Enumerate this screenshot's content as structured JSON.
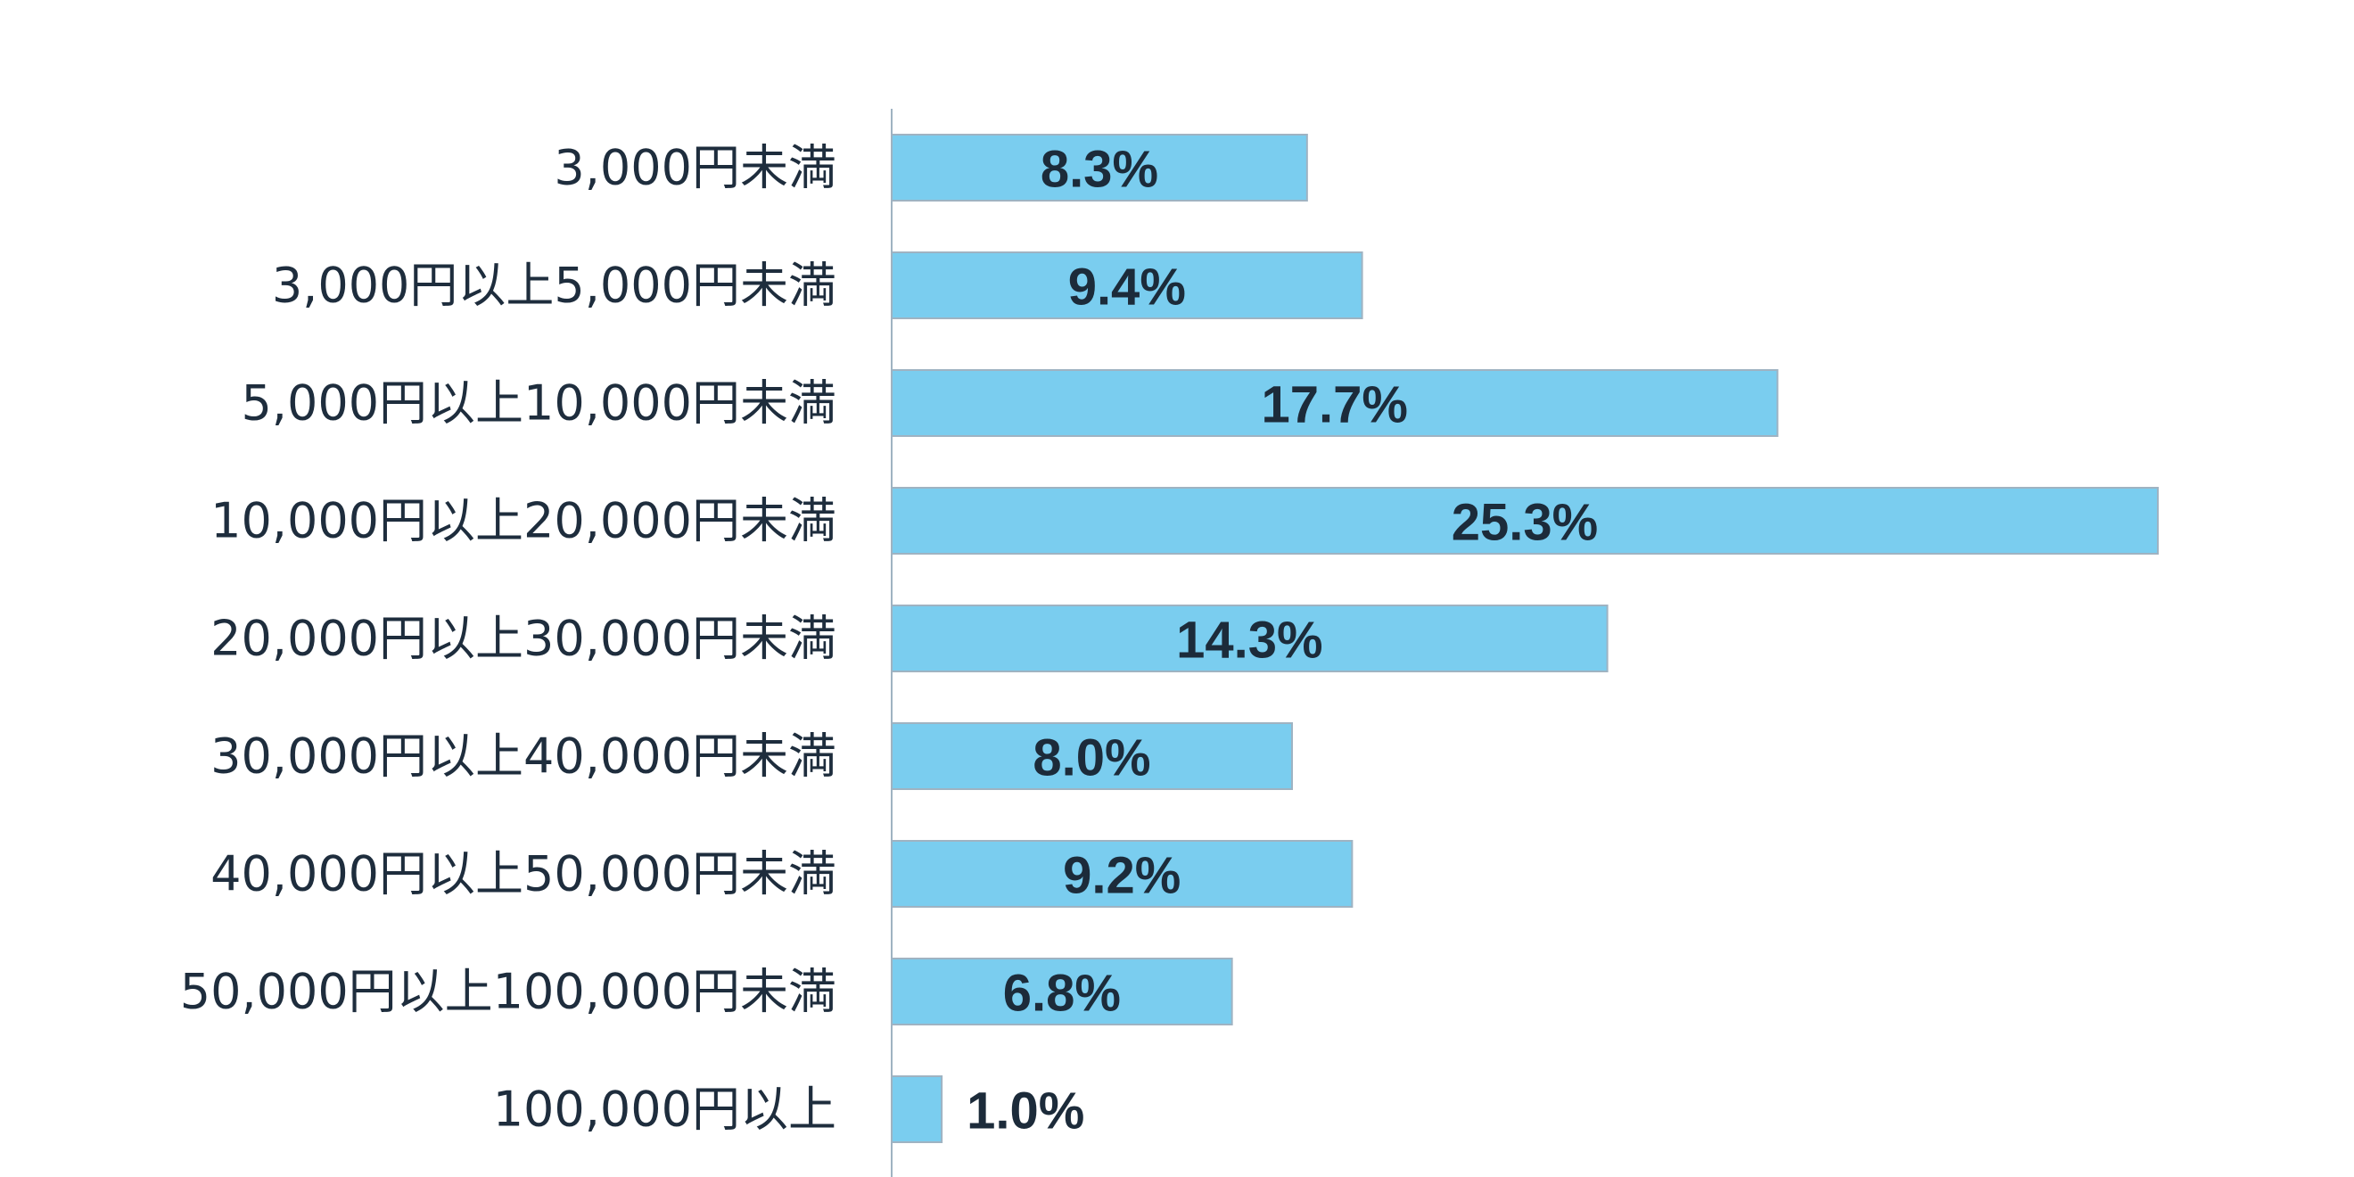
{
  "chart_data": {
    "type": "bar",
    "orientation": "horizontal",
    "categories": [
      "3,000円未満",
      "3,000円以上5,000円未満",
      "5,000円以上10,000円未満",
      "10,000円以上20,000円未満",
      "20,000円以上30,000円未満",
      "30,000円以上40,000円未満",
      "40,000円以上50,000円未満",
      "50,000円以上100,000円未満",
      "100,000円以上"
    ],
    "values": [
      8.3,
      9.4,
      17.7,
      25.3,
      14.3,
      8.0,
      9.2,
      6.8,
      1.0
    ],
    "value_labels": [
      "8.3%",
      "9.4%",
      "17.7%",
      "25.3%",
      "14.3%",
      "8.0%",
      "9.2%",
      "6.8%",
      "1.0%"
    ],
    "title": "",
    "xlabel": "",
    "ylabel": "",
    "xlim": [
      0,
      25.3
    ],
    "grid": false,
    "legend": "none",
    "colors": {
      "bar": "#7acdef",
      "bar_border": "#9fb3c2",
      "axis": "#9fb3c2",
      "label_text": "#1e2d3d",
      "value_text": "#1c2b3a"
    }
  }
}
